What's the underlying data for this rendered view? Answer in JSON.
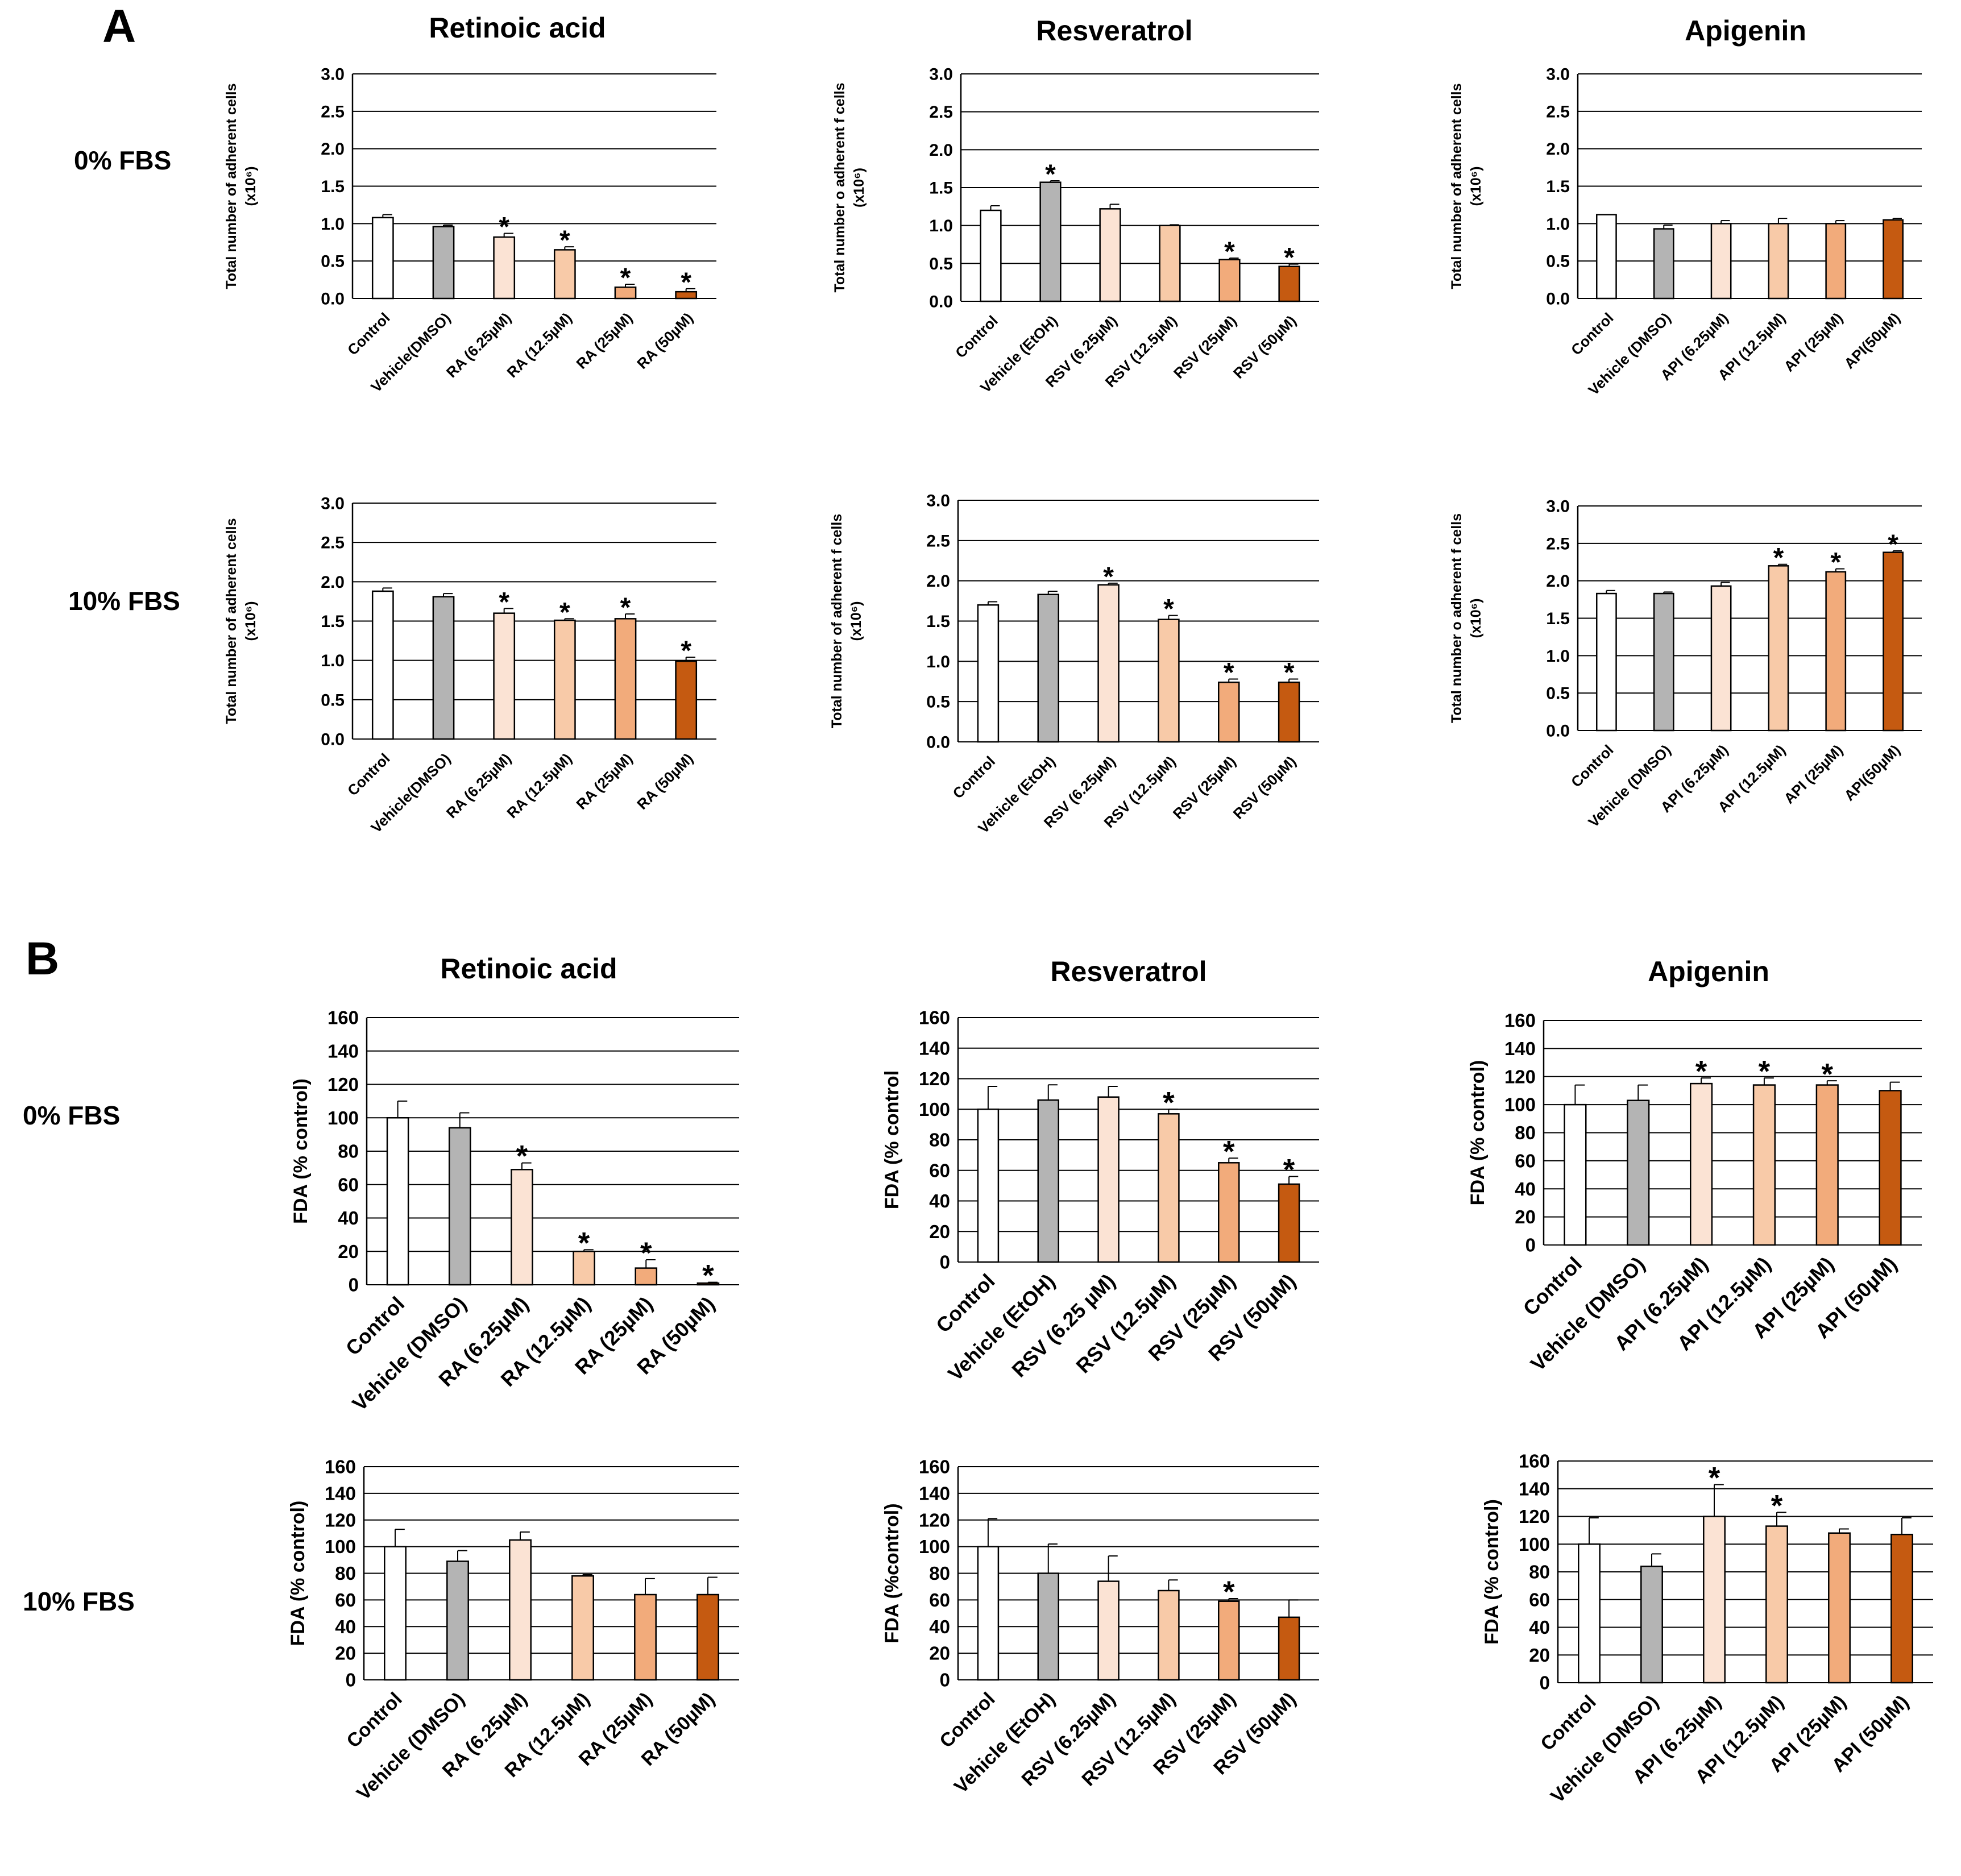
{
  "panels": {
    "A": {
      "letter": "A"
    },
    "B": {
      "letter": "B"
    }
  },
  "row_labels": {
    "a0": "0% FBS",
    "a10": "10% FBS",
    "b0": "0% FBS",
    "b10": "10% FBS"
  },
  "column_titles": {
    "a_ra": "Retinoic acid",
    "a_rsv": "Resveratrol",
    "a_api": "Apigenin",
    "b_ra": "Retinoic acid",
    "b_rsv": "Resveratrol",
    "b_api": "Apigenin"
  },
  "colors": [
    "#ffffff",
    "#b4b4b4",
    "#fbe3d4",
    "#f8caa8",
    "#f2ab7b",
    "#c55a11"
  ],
  "chart_data": [
    {
      "id": "a_ra_0",
      "type": "bar",
      "ylabel": "Total number of adherent cells",
      "ylabel2": "(x10⁶)",
      "ylim": [
        0,
        3.0
      ],
      "yticks": [
        "0.0",
        "0.5",
        "1.0",
        "1.5",
        "2.0",
        "2.5",
        "3.0"
      ],
      "ytick_values": [
        0,
        0.5,
        1,
        1.5,
        2,
        2.5,
        3
      ],
      "categories": [
        "Control",
        "Vehicle(DMSO)",
        "RA (6.25µM)",
        "RA (12.5µM)",
        "RA (25µM)",
        "RA (50µM)"
      ],
      "values": [
        1.08,
        0.96,
        0.82,
        0.65,
        0.15,
        0.09
      ],
      "errors": [
        0.04,
        0.02,
        0.05,
        0.04,
        0.04,
        0.04
      ],
      "significance": [
        "",
        "",
        "*",
        "*",
        "*",
        "*"
      ]
    },
    {
      "id": "a_rsv_0",
      "type": "bar",
      "ylabel": "Total number o adherent f cells",
      "ylabel2": "(x10⁶)",
      "ylim": [
        0,
        3.0
      ],
      "yticks": [
        "0.0",
        "0.5",
        "1.0",
        "1.5",
        "2.0",
        "2.5",
        "3.0"
      ],
      "ytick_values": [
        0,
        0.5,
        1,
        1.5,
        2,
        2.5,
        3
      ],
      "categories": [
        "Control",
        "Vehicle (EtOH)",
        "RSV (6.25µM)",
        "RSV (12.5µM)",
        "RSV (25µM)",
        "RSV (50µM)"
      ],
      "values": [
        1.2,
        1.57,
        1.22,
        1.0,
        0.55,
        0.46
      ],
      "errors": [
        0.06,
        0.02,
        0.06,
        0.01,
        0.02,
        0.03
      ],
      "significance": [
        "",
        "*",
        "",
        "",
        "*",
        "*"
      ]
    },
    {
      "id": "a_api_0",
      "type": "bar",
      "ylabel": "Total number of adherent cells",
      "ylabel2": "(x10⁶)",
      "ylim": [
        0,
        3.0
      ],
      "yticks": [
        "0.0",
        "0.5",
        "1.0",
        "1.5",
        "2.0",
        "2.5",
        "3.0"
      ],
      "ytick_values": [
        0,
        0.5,
        1,
        1.5,
        2,
        2.5,
        3
      ],
      "categories": [
        "Control",
        "Vehicle (DMSO)",
        "API (6.25µM)",
        "API (12.5µM)",
        "API (25µM)",
        "API(50µM)"
      ],
      "values": [
        1.12,
        0.93,
        1.0,
        1.0,
        1.0,
        1.05
      ],
      "errors": [
        0.0,
        0.05,
        0.04,
        0.07,
        0.04,
        0.02
      ],
      "significance": [
        "",
        "",
        "",
        "",
        "",
        ""
      ]
    },
    {
      "id": "a_ra_10",
      "type": "bar",
      "ylabel": "Total number of adherent cells",
      "ylabel2": "(x10⁶)",
      "ylim": [
        0,
        3.0
      ],
      "yticks": [
        "0.0",
        "0.5",
        "1.0",
        "1.5",
        "2.0",
        "2.5",
        "3.0"
      ],
      "ytick_values": [
        0,
        0.5,
        1,
        1.5,
        2,
        2.5,
        3
      ],
      "categories": [
        "Control",
        "Vehicle(DMSO)",
        "RA (6.25µM)",
        "RA (12.5µM)",
        "RA (25µM)",
        "RA (50µM)"
      ],
      "values": [
        1.88,
        1.81,
        1.6,
        1.51,
        1.53,
        0.99
      ],
      "errors": [
        0.04,
        0.04,
        0.06,
        0.02,
        0.06,
        0.05
      ],
      "significance": [
        "",
        "",
        "*",
        "*",
        "*",
        "*"
      ]
    },
    {
      "id": "a_rsv_10",
      "type": "bar",
      "ylabel": "Total number of adherent  f cells",
      "ylabel2": "(x10⁶)",
      "ylim": [
        0,
        3.0
      ],
      "yticks": [
        "0.0",
        "0.5",
        "1.0",
        "1.5",
        "2.0",
        "2.5",
        "3.0"
      ],
      "ytick_values": [
        0,
        0.5,
        1,
        1.5,
        2,
        2.5,
        3
      ],
      "categories": [
        "Control",
        "Vehicle (EtOH)",
        "RSV (6.25µM)",
        "RSV (12.5µM)",
        "RSV (25µM)",
        "RSV (50µM)"
      ],
      "values": [
        1.7,
        1.83,
        1.95,
        1.52,
        0.74,
        0.74
      ],
      "errors": [
        0.04,
        0.04,
        0.02,
        0.05,
        0.04,
        0.04
      ],
      "significance": [
        "",
        "",
        "*",
        "*",
        "*",
        "*"
      ]
    },
    {
      "id": "a_api_10",
      "type": "bar",
      "ylabel": "Total number o adherent f cells",
      "ylabel2": "(x10⁶)",
      "ylim": [
        0,
        3.0
      ],
      "yticks": [
        "0.0",
        "0.5",
        "1.0",
        "1.5",
        "2.0",
        "2.5",
        "3.0"
      ],
      "ytick_values": [
        0,
        0.5,
        1,
        1.5,
        2,
        2.5,
        3
      ],
      "categories": [
        "Control",
        "Vehicle (DMSO)",
        "API (6.25µM)",
        "API (12.5µM)",
        "API (25µM)",
        "API(50µM)"
      ],
      "values": [
        1.83,
        1.83,
        1.93,
        2.2,
        2.12,
        2.38
      ],
      "errors": [
        0.04,
        0.02,
        0.05,
        0.02,
        0.04,
        0.02
      ],
      "significance": [
        "",
        "",
        "",
        "*",
        "*",
        "*"
      ]
    },
    {
      "id": "b_ra_0",
      "type": "bar",
      "ylabel": "FDA (% control)",
      "ylabel2": "",
      "ylim": [
        0,
        160
      ],
      "yticks": [
        "0",
        "20",
        "40",
        "60",
        "80",
        "100",
        "120",
        "140",
        "160"
      ],
      "ytick_values": [
        0,
        20,
        40,
        60,
        80,
        100,
        120,
        140,
        160
      ],
      "categories": [
        "Control",
        "Vehicle (DMSO)",
        "RA (6.25µM)",
        "RA (12.5µM)",
        "RA (25µM)",
        "RA (50µM)"
      ],
      "values": [
        100,
        94,
        69,
        20,
        10,
        1
      ],
      "errors": [
        10,
        9,
        4,
        1,
        5,
        0.5
      ],
      "significance": [
        "",
        "",
        "*",
        "*",
        "*",
        "*"
      ]
    },
    {
      "id": "b_rsv_0",
      "type": "bar",
      "ylabel": "FDA (% control",
      "ylabel2": "",
      "ylim": [
        0,
        160
      ],
      "yticks": [
        "0",
        "20",
        "40",
        "60",
        "80",
        "100",
        "120",
        "140",
        "160"
      ],
      "ytick_values": [
        0,
        20,
        40,
        60,
        80,
        100,
        120,
        140,
        160
      ],
      "categories": [
        "Control",
        "Vehicle (EtOH)",
        "RSV (6.25 µM)",
        "RSV (12.5µM)",
        "RSV (25µM)",
        "RSV (50µM)"
      ],
      "values": [
        100,
        106,
        108,
        97,
        65,
        51
      ],
      "errors": [
        15,
        10,
        7,
        3,
        3,
        5
      ],
      "significance": [
        "",
        "",
        "",
        "*",
        "*",
        "*"
      ]
    },
    {
      "id": "b_api_0",
      "type": "bar",
      "ylabel": "FDA (% control)",
      "ylabel2": "",
      "ylim": [
        0,
        160
      ],
      "yticks": [
        "0",
        "20",
        "40",
        "60",
        "80",
        "100",
        "120",
        "140",
        "160"
      ],
      "ytick_values": [
        0,
        20,
        40,
        60,
        80,
        100,
        120,
        140,
        160
      ],
      "categories": [
        "Control",
        "Vehicle (DMSO)",
        "API (6.25µM)",
        "API (12.5µM)",
        "API (25µM)",
        "API (50µM)"
      ],
      "values": [
        100,
        103,
        115,
        114,
        114,
        110
      ],
      "errors": [
        14,
        11,
        4,
        5,
        3,
        6
      ],
      "significance": [
        "",
        "",
        "*",
        "*",
        "*",
        ""
      ]
    },
    {
      "id": "b_ra_10",
      "type": "bar",
      "ylabel": "FDA (% control)",
      "ylabel2": "",
      "ylim": [
        0,
        160
      ],
      "yticks": [
        "0",
        "20",
        "40",
        "60",
        "80",
        "100",
        "120",
        "140",
        "160"
      ],
      "ytick_values": [
        0,
        20,
        40,
        60,
        80,
        100,
        120,
        140,
        160
      ],
      "categories": [
        "Control",
        "Vehicle (DMSO)",
        "RA (6.25µM)",
        "RA (12.5µM)",
        "RA (25µM)",
        "RA (50µM)"
      ],
      "values": [
        100,
        89,
        105,
        78,
        64,
        64
      ],
      "errors": [
        13,
        8,
        6,
        1,
        12,
        13
      ],
      "significance": [
        "",
        "",
        "",
        "",
        "",
        ""
      ]
    },
    {
      "id": "b_rsv_10",
      "type": "bar",
      "ylabel": "FDA (%control)",
      "ylabel2": "",
      "ylim": [
        0,
        160
      ],
      "yticks": [
        "0",
        "20",
        "40",
        "60",
        "80",
        "100",
        "120",
        "140",
        "160"
      ],
      "ytick_values": [
        0,
        20,
        40,
        60,
        80,
        100,
        120,
        140,
        160
      ],
      "categories": [
        "Control",
        "Vehicle (EtOH)",
        "RSV  (6.25µM)",
        "RSV  (12.5µM)",
        "RSV  (25µM)",
        "RSV (50µM)"
      ],
      "values": [
        100,
        80,
        74,
        67,
        59,
        47
      ],
      "errors": [
        21,
        22,
        19,
        8,
        2,
        13
      ],
      "significance": [
        "",
        "",
        "",
        "",
        "*",
        ""
      ]
    },
    {
      "id": "b_api_10",
      "type": "bar",
      "ylabel": "FDA (% control)",
      "ylabel2": "",
      "ylim": [
        0,
        160
      ],
      "yticks": [
        "0",
        "20",
        "40",
        "60",
        "80",
        "100",
        "120",
        "140",
        "160"
      ],
      "ytick_values": [
        0,
        20,
        40,
        60,
        80,
        100,
        120,
        140,
        160
      ],
      "categories": [
        "Control",
        "Vehicle (DMSO)",
        "API (6.25µM)",
        "API (12.5µM)",
        "API (25µM)",
        "API (50µM)"
      ],
      "values": [
        100,
        84,
        120,
        113,
        108,
        107
      ],
      "errors": [
        19,
        9,
        23,
        10,
        3,
        12
      ],
      "significance": [
        "",
        "",
        "*",
        "*",
        "",
        ""
      ]
    }
  ]
}
